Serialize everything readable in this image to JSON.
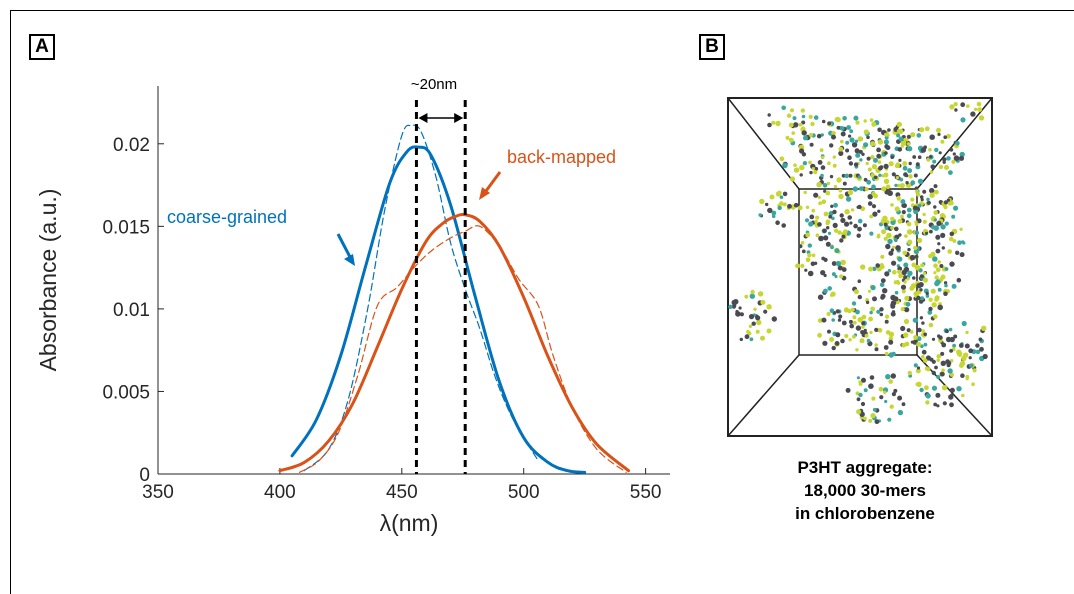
{
  "panels": {
    "a_label": "A",
    "b_label": "B"
  },
  "colors": {
    "coarse_grained": "#0072BD",
    "back_mapped": "#D95319",
    "peak_lines": "#000000",
    "bead_yellow": "#c8d632",
    "bead_dark": "#4a4a52",
    "bead_cyan": "#3aa6a0"
  },
  "chart_data": {
    "type": "line",
    "xlabel": "λ(nm)",
    "ylabel": "Absorbance (a.u.)",
    "xlim": [
      350,
      560
    ],
    "ylim": [
      0,
      0.0235
    ],
    "xticks": [
      350,
      400,
      450,
      500,
      550
    ],
    "yticks": [
      0,
      0.005,
      0.01,
      0.015,
      0.02
    ],
    "ytick_labels": [
      "0",
      "0.005",
      "0.01",
      "0.015",
      "0.02"
    ],
    "grid": false,
    "series": [
      {
        "name": "coarse-grained",
        "style": "solid",
        "x": [
          405,
          415,
          425,
          435,
          445,
          452,
          457,
          462,
          470,
          480,
          490,
          500,
          510,
          518,
          525
        ],
        "y": [
          0.0011,
          0.0033,
          0.0072,
          0.0125,
          0.0176,
          0.0195,
          0.0198,
          0.0193,
          0.0163,
          0.0108,
          0.0056,
          0.0022,
          0.0007,
          0.0002,
          0.0001
        ]
      },
      {
        "style": "dashed",
        "x": [
          410,
          420,
          428,
          436,
          443,
          450,
          454,
          458,
          464,
          470,
          476,
          482,
          488,
          494,
          500,
          506
        ],
        "y": [
          0.0002,
          0.0015,
          0.0045,
          0.01,
          0.016,
          0.0205,
          0.0211,
          0.0207,
          0.018,
          0.014,
          0.0112,
          0.0088,
          0.006,
          0.0038,
          0.0022,
          0.0008
        ]
      },
      {
        "name": "back-mapped",
        "style": "solid",
        "x": [
          400,
          410,
          420,
          430,
          440,
          450,
          460,
          467,
          472,
          476,
          482,
          490,
          500,
          510,
          520,
          530,
          543
        ],
        "y": [
          0.0002,
          0.0007,
          0.002,
          0.0043,
          0.0077,
          0.0112,
          0.0141,
          0.0152,
          0.0156,
          0.0157,
          0.0153,
          0.0138,
          0.0107,
          0.0071,
          0.004,
          0.0018,
          0.0002
        ]
      },
      {
        "style": "dashed",
        "x": [
          408,
          416,
          424,
          432,
          440,
          448,
          455,
          462,
          470,
          476,
          482,
          490,
          498,
          506,
          512,
          520,
          530,
          542
        ],
        "y": [
          0.0001,
          0.0008,
          0.0025,
          0.006,
          0.0102,
          0.0113,
          0.0125,
          0.0135,
          0.0143,
          0.0147,
          0.015,
          0.0138,
          0.0118,
          0.0102,
          0.0072,
          0.004,
          0.0015,
          0.0001
        ]
      }
    ],
    "annotations": [
      {
        "text": "coarse-grained",
        "color": "#0072BD"
      },
      {
        "text": "back-mapped",
        "color": "#D95319"
      },
      {
        "text": "~20nm",
        "color": "#000000"
      }
    ],
    "peak_lines_x": [
      456,
      476
    ]
  },
  "panel_b": {
    "caption_line1": "P3HT aggregate:",
    "caption_line2": "18,000 30-mers",
    "caption_line3": "in chlorobenzene"
  }
}
